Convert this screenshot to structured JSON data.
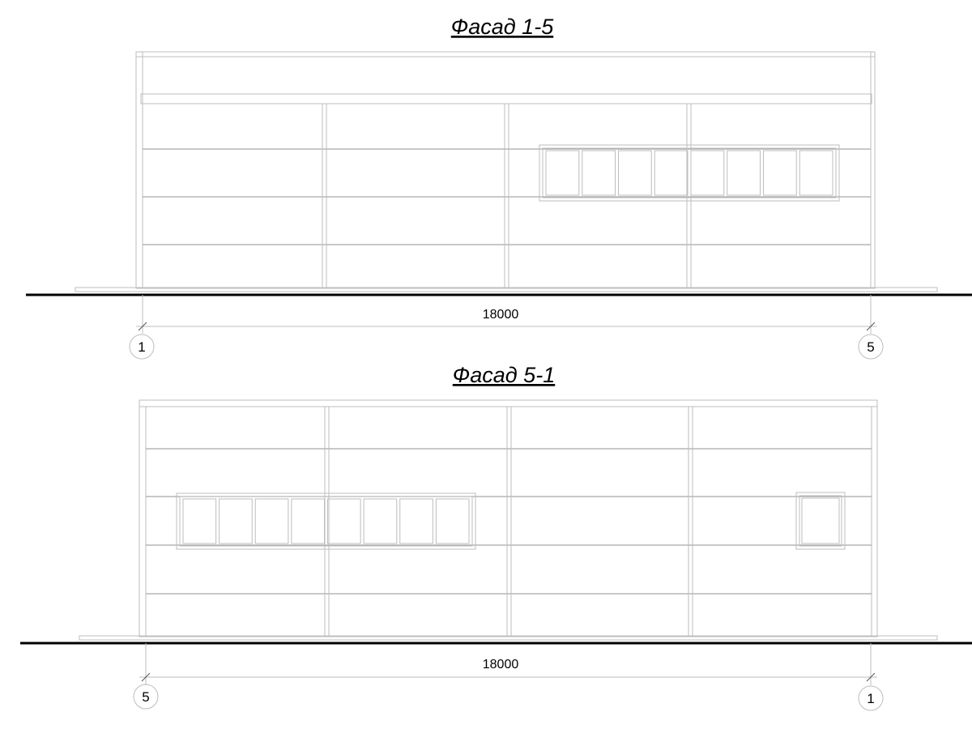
{
  "facades": [
    {
      "title": "Фасад 1-5",
      "dimension": "18000",
      "axis_left": "1",
      "axis_right": "5",
      "window_panes": 8
    },
    {
      "title": "Фасад 5-1",
      "dimension": "18000",
      "axis_left": "5",
      "axis_right": "1",
      "window_panes": 8
    }
  ]
}
